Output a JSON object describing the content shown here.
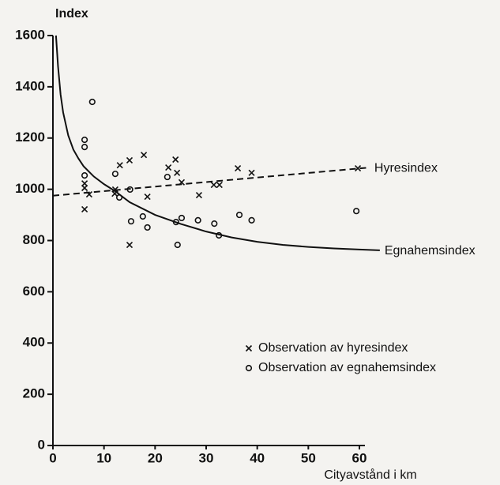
{
  "chart_data": {
    "type": "scatter",
    "y_label": "Index",
    "x_label": "Cityavstånd i km",
    "xlim": [
      0,
      60
    ],
    "xticks": [
      0,
      10,
      20,
      30,
      40,
      50,
      60
    ],
    "ylim": [
      0,
      1600
    ],
    "yticks": [
      0,
      200,
      400,
      600,
      800,
      1000,
      1200,
      1400,
      1600
    ],
    "grid": false,
    "legend": "lower right",
    "series": [
      {
        "name": "Observation av hyresindex",
        "type": "scatter",
        "marker": "x",
        "color": "#111111",
        "x": [
          6.2,
          6.2,
          6.2,
          7.1,
          12.2,
          12.1,
          13.1,
          15.0,
          17.8,
          18.5,
          15.0,
          22.6,
          24.0,
          24.3,
          25.2,
          28.6,
          31.5,
          32.6,
          36.2,
          38.9,
          59.7
        ],
        "values": [
          1023,
          1005,
          922,
          980,
          999,
          983,
          1094,
          1113,
          1134,
          971,
          783,
          1085,
          1116,
          1064,
          1027,
          977,
          1017,
          1017,
          1082,
          1064,
          1082
        ]
      },
      {
        "name": "Observation av egnahemsindex",
        "type": "scatter",
        "marker": "o",
        "color": "#111111",
        "x": [
          7.7,
          6.2,
          6.2,
          6.2,
          12.2,
          13.0,
          15.1,
          15.3,
          17.6,
          18.5,
          22.4,
          24.1,
          25.2,
          24.4,
          28.4,
          31.6,
          32.5,
          36.5,
          38.9,
          59.4
        ],
        "values": [
          1341,
          1193,
          1165,
          1054,
          1060,
          968,
          999,
          875,
          894,
          851,
          1048,
          872,
          888,
          783,
          879,
          866,
          820,
          900,
          879,
          915
        ]
      },
      {
        "name": "Hyresindex",
        "type": "line",
        "style": "dashed",
        "color": "#111111",
        "x": [
          0,
          62
        ],
        "values": [
          975,
          1085
        ]
      },
      {
        "name": "Egnahemsindex",
        "type": "line",
        "style": "solid",
        "color": "#111111",
        "x": [
          0.6,
          1,
          1.5,
          2,
          3,
          4,
          5,
          6,
          8,
          10,
          12,
          15,
          20,
          25,
          30,
          35,
          40,
          45,
          50,
          55,
          60,
          64
        ],
        "values": [
          1600,
          1480,
          1370,
          1300,
          1210,
          1155,
          1120,
          1090,
          1050,
          1020,
          995,
          950,
          900,
          865,
          835,
          812,
          795,
          783,
          775,
          769,
          765,
          762
        ]
      }
    ]
  }
}
